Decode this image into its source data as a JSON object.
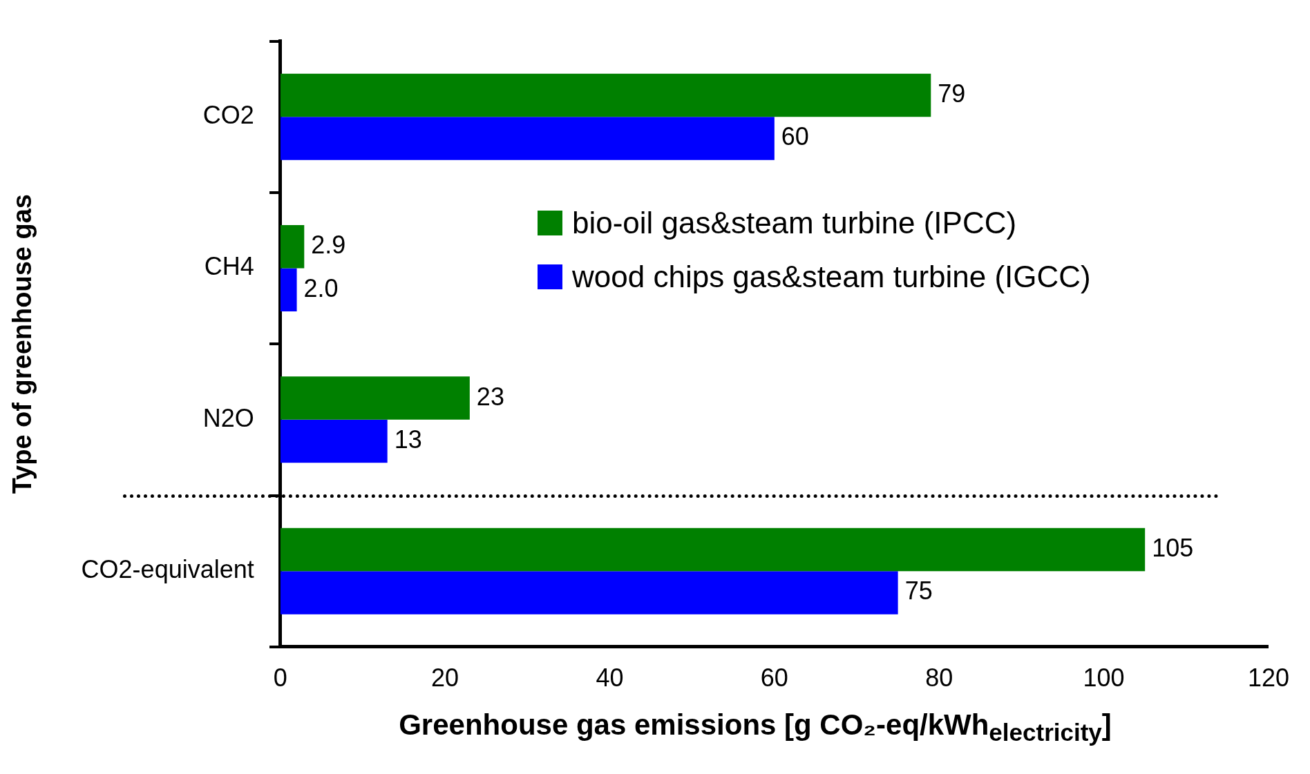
{
  "chart_data": {
    "type": "bar",
    "orientation": "horizontal",
    "categories": [
      "CO2",
      "CH4",
      "N2O",
      "CO2-equivalent"
    ],
    "series": [
      {
        "name": "bio-oil gas&steam turbine (IPCC)",
        "color": "#008000",
        "values": [
          79,
          2.9,
          23,
          105
        ],
        "value_labels": [
          "79",
          "2.9",
          "23",
          "105"
        ]
      },
      {
        "name": "wood chips gas&steam turbine (IGCC)",
        "color": "#0000ff",
        "values": [
          60,
          2.0,
          13,
          75
        ],
        "value_labels": [
          "60",
          "2.0",
          "13",
          "75"
        ]
      }
    ],
    "xlim": [
      0,
      120
    ],
    "xticks": [
      0,
      20,
      40,
      60,
      80,
      100,
      120
    ],
    "xlabel": "Greenhouse gas emissions [g CO₂-eq/kWh$_{electricity}$]",
    "ylabel": "Type of greenhouse gas",
    "legend": "right",
    "grid": false
  }
}
